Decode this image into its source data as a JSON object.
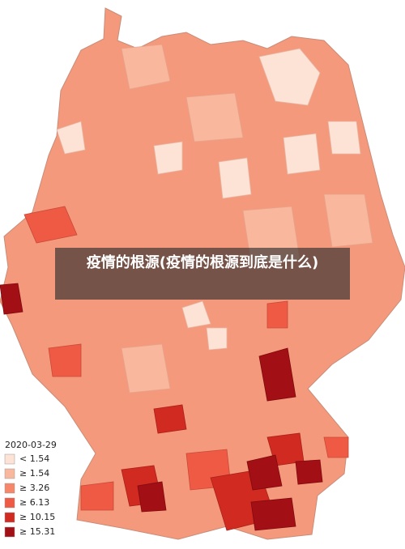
{
  "map": {
    "title": "疫情的根源(疫情的根源到底是什么)",
    "legend": {
      "date": "2020-03-29",
      "items": [
        {
          "label": "< 1.54",
          "color": "#fde3d6"
        },
        {
          "label": "≥ 1.54",
          "color": "#f9b79d"
        },
        {
          "label": "≥ 3.26",
          "color": "#f6876b"
        },
        {
          "label": "≥ 6.13",
          "color": "#ee5a44"
        },
        {
          "label": "≥ 10.15",
          "color": "#d02a21"
        },
        {
          "label": "≥ 15.31",
          "color": "#a20f15"
        }
      ]
    }
  }
}
